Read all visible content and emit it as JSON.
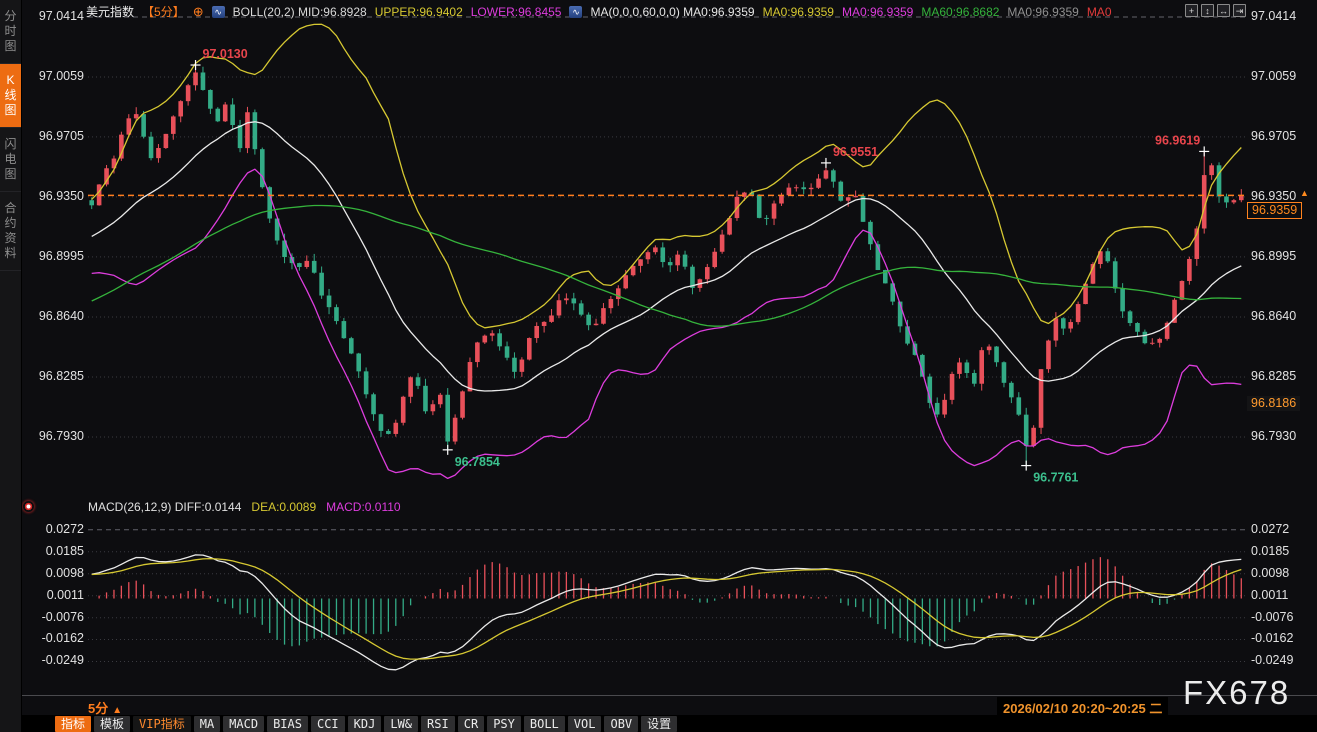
{
  "app": {
    "watermark": "FX678",
    "timestamp": "2026/02/10 20:20~20:25 二",
    "period_label": "5分"
  },
  "colors": {
    "up": "#e8505a",
    "down": "#33ab86",
    "boll_upper": "#d6c832",
    "boll_mid": "#e9e9e9",
    "boll_lower": "#dd3ddd",
    "ma60": "#35b33c",
    "accent": "#ff7d1e",
    "hist_pos": "#e8505a",
    "hist_neg": "#33ab86",
    "diff": "#e9e9e9",
    "dea": "#d6c832",
    "grid": "#3a3a40",
    "grid_major": "#62626a",
    "red_text": "#e8454c",
    "green_text": "#3cc08e"
  },
  "sidebar": {
    "items": [
      {
        "label": "分时图",
        "active": false
      },
      {
        "label": "K线图",
        "active": true
      },
      {
        "label": "闪电图",
        "active": false
      },
      {
        "label": "合约资料",
        "active": false
      }
    ]
  },
  "header": {
    "items": [
      {
        "type": "text",
        "text": "美元指数",
        "color": "#ececec",
        "name": "symbol-title"
      },
      {
        "type": "text",
        "text": "【5分】",
        "color": "#ff7d1e",
        "name": "interval-label"
      },
      {
        "type": "icon",
        "name": "circle-plus-icon",
        "glyph": "⊕"
      },
      {
        "type": "icon",
        "name": "mini-chart-icon",
        "glyph": "∿"
      },
      {
        "type": "text",
        "text": "BOLL(20,2) MID:96.8928",
        "color": "#d9d9d9",
        "name": "boll-mid-value"
      },
      {
        "type": "text",
        "text": "UPPER:96.9402",
        "color": "#d6c832",
        "name": "boll-upper-value"
      },
      {
        "type": "text",
        "text": "LOWER:96.8455",
        "color": "#dd3ddd",
        "name": "boll-lower-value"
      },
      {
        "type": "icon",
        "name": "mini-chart-icon",
        "glyph": "∿"
      },
      {
        "type": "text",
        "text": "MA(0,0,0,60,0,0) MA0:96.9359",
        "color": "#e6e6e6",
        "name": "ma-params-value"
      },
      {
        "type": "text",
        "text": "MA0:96.9359",
        "color": "#d6c832",
        "name": "ma0-yellow-value"
      },
      {
        "type": "text",
        "text": "MA0:96.9359",
        "color": "#dd3ddd",
        "name": "ma0-magenta-value"
      },
      {
        "type": "text",
        "text": "MA60:96.8682",
        "color": "#35b33c",
        "name": "ma60-value"
      },
      {
        "type": "text",
        "text": "MA0:96.9359",
        "color": "#909090",
        "name": "ma0-gray-value"
      },
      {
        "type": "text",
        "text": "MA0",
        "color": "#e23b3b",
        "name": "ma0-red-label"
      }
    ],
    "window_icons": [
      {
        "name": "crosshair-icon",
        "glyph": "+"
      },
      {
        "name": "scale-vertical-icon",
        "glyph": "↕"
      },
      {
        "name": "scale-horizontal-icon",
        "glyph": "↔"
      },
      {
        "name": "pan-right-icon",
        "glyph": "⇥"
      }
    ]
  },
  "main_axis": {
    "ticks": [
      "97.0414",
      "97.0059",
      "96.9705",
      "96.9350",
      "96.8995",
      "96.8640",
      "96.8285",
      "96.7930"
    ],
    "price_tag": "96.9359",
    "secondary_tag": "96.8186"
  },
  "macd_axis": {
    "ticks": [
      "0.0272",
      "0.0185",
      "0.0098",
      "0.0011",
      "-0.0076",
      "-0.0162",
      "-0.0249"
    ]
  },
  "macd_header": {
    "segments": [
      {
        "text": "MACD(26,12,9) DIFF:0.0144",
        "color": "#e0e0e0"
      },
      {
        "text": "DEA:0.0089",
        "color": "#d6c832"
      },
      {
        "text": "MACD:0.0110",
        "color": "#dd3ddd"
      }
    ]
  },
  "bottom_tabs": [
    {
      "label": "指标",
      "style": "active"
    },
    {
      "label": "模板",
      "style": "plain"
    },
    {
      "label": "VIP指标",
      "style": "vip"
    },
    {
      "label": "MA",
      "style": "btn"
    },
    {
      "label": "MACD",
      "style": "btn"
    },
    {
      "label": "BIAS",
      "style": "btn"
    },
    {
      "label": "CCI",
      "style": "btn"
    },
    {
      "label": "KDJ",
      "style": "btn"
    },
    {
      "label": "LW&",
      "style": "btn"
    },
    {
      "label": "RSI",
      "style": "btn"
    },
    {
      "label": "CR",
      "style": "btn"
    },
    {
      "label": "PSY",
      "style": "btn"
    },
    {
      "label": "BOLL",
      "style": "btn"
    },
    {
      "label": "VOL",
      "style": "btn"
    },
    {
      "label": "OBV",
      "style": "btn"
    },
    {
      "label": "设置",
      "style": "btn"
    }
  ],
  "chart_data": [
    {
      "type": "candlestick",
      "title": "美元指数 5分",
      "ylim": [
        96.762,
        97.047
      ],
      "y_ticks": [
        97.0414,
        97.0059,
        96.9705,
        96.935,
        96.8995,
        96.864,
        96.8285,
        96.793
      ],
      "overlays": [
        "BOLL(20,2) UPPER/MID/LOWER",
        "MA60"
      ],
      "current_price": 96.9359,
      "dashed_level": 96.9359,
      "n_candles": 156,
      "annotations": [
        {
          "label": "97.0130",
          "price": 97.013,
          "xf": 0.0925,
          "kind": "high",
          "align": "right"
        },
        {
          "label": "96.9551",
          "price": 96.9551,
          "xf": 0.641,
          "kind": "high",
          "align": "right"
        },
        {
          "label": "96.9619",
          "price": 96.9619,
          "xf": 0.966,
          "kind": "high",
          "align": "left"
        },
        {
          "label": "96.7854",
          "price": 96.7854,
          "xf": 0.31,
          "kind": "low",
          "align": "right"
        },
        {
          "label": "96.7761",
          "price": 96.7761,
          "xf": 0.816,
          "kind": "low",
          "align": "right"
        }
      ],
      "close_keyframes": [
        [
          0,
          96.93
        ],
        [
          0.01,
          96.949
        ],
        [
          0.02,
          96.958
        ],
        [
          0.03,
          96.98
        ],
        [
          0.04,
          96.986
        ],
        [
          0.05,
          96.956
        ],
        [
          0.06,
          96.966
        ],
        [
          0.07,
          96.98
        ],
        [
          0.08,
          96.996
        ],
        [
          0.092,
          97.01
        ],
        [
          0.1,
          96.992
        ],
        [
          0.11,
          96.98
        ],
        [
          0.118,
          96.993
        ],
        [
          0.128,
          96.96
        ],
        [
          0.136,
          96.988
        ],
        [
          0.145,
          96.95
        ],
        [
          0.155,
          96.922
        ],
        [
          0.165,
          96.9
        ],
        [
          0.178,
          96.893
        ],
        [
          0.19,
          96.898
        ],
        [
          0.2,
          96.878
        ],
        [
          0.213,
          96.86
        ],
        [
          0.225,
          96.845
        ],
        [
          0.237,
          96.822
        ],
        [
          0.25,
          96.797
        ],
        [
          0.26,
          96.793
        ],
        [
          0.27,
          96.814
        ],
        [
          0.28,
          96.832
        ],
        [
          0.292,
          96.806
        ],
        [
          0.302,
          96.822
        ],
        [
          0.31,
          96.789
        ],
        [
          0.32,
          96.814
        ],
        [
          0.332,
          96.845
        ],
        [
          0.345,
          96.857
        ],
        [
          0.357,
          96.846
        ],
        [
          0.37,
          96.828
        ],
        [
          0.383,
          96.857
        ],
        [
          0.397,
          96.863
        ],
        [
          0.41,
          96.877
        ],
        [
          0.423,
          96.869
        ],
        [
          0.435,
          96.856
        ],
        [
          0.45,
          96.874
        ],
        [
          0.463,
          96.887
        ],
        [
          0.477,
          96.899
        ],
        [
          0.49,
          96.906
        ],
        [
          0.5,
          96.89
        ],
        [
          0.512,
          96.903
        ],
        [
          0.523,
          96.879
        ],
        [
          0.535,
          96.893
        ],
        [
          0.548,
          96.912
        ],
        [
          0.56,
          96.933
        ],
        [
          0.572,
          96.941
        ],
        [
          0.583,
          96.919
        ],
        [
          0.596,
          96.933
        ],
        [
          0.61,
          96.943
        ],
        [
          0.623,
          96.938
        ],
        [
          0.641,
          96.951
        ],
        [
          0.653,
          96.93
        ],
        [
          0.663,
          96.939
        ],
        [
          0.673,
          96.917
        ],
        [
          0.684,
          96.891
        ],
        [
          0.695,
          96.876
        ],
        [
          0.706,
          96.854
        ],
        [
          0.717,
          96.84
        ],
        [
          0.728,
          96.815
        ],
        [
          0.737,
          96.803
        ],
        [
          0.747,
          96.828
        ],
        [
          0.757,
          96.839
        ],
        [
          0.767,
          96.823
        ],
        [
          0.777,
          96.852
        ],
        [
          0.787,
          96.837
        ],
        [
          0.797,
          96.82
        ],
        [
          0.807,
          96.806
        ],
        [
          0.816,
          96.78
        ],
        [
          0.827,
          96.84
        ],
        [
          0.838,
          96.863
        ],
        [
          0.848,
          96.853
        ],
        [
          0.858,
          96.873
        ],
        [
          0.87,
          96.893
        ],
        [
          0.88,
          96.906
        ],
        [
          0.89,
          96.881
        ],
        [
          0.9,
          96.863
        ],
        [
          0.91,
          96.855
        ],
        [
          0.92,
          96.846
        ],
        [
          0.93,
          96.853
        ],
        [
          0.94,
          96.869
        ],
        [
          0.95,
          96.888
        ],
        [
          0.96,
          96.908
        ],
        [
          0.966,
          96.942
        ],
        [
          0.972,
          96.958
        ],
        [
          0.98,
          96.937
        ],
        [
          0.99,
          96.931
        ],
        [
          1,
          96.936
        ]
      ]
    },
    {
      "type": "bar+line",
      "name": "MACD(26,12,9)",
      "y_ticks": [
        0.0272,
        0.0185,
        0.0098,
        0.0011,
        -0.0076,
        -0.0162,
        -0.0249
      ],
      "series": [
        {
          "name": "DIFF",
          "color": "#e9e9e9",
          "last": 0.0144
        },
        {
          "name": "DEA",
          "color": "#d6c832",
          "last": 0.0089
        },
        {
          "name": "MACD",
          "color": "#dd3ddd",
          "last": 0.011
        }
      ],
      "derivation": "DIFF=EMA12-EMA26 of closes; DEA=EMA9(DIFF); bars=2*(DIFF-DEA)"
    }
  ]
}
